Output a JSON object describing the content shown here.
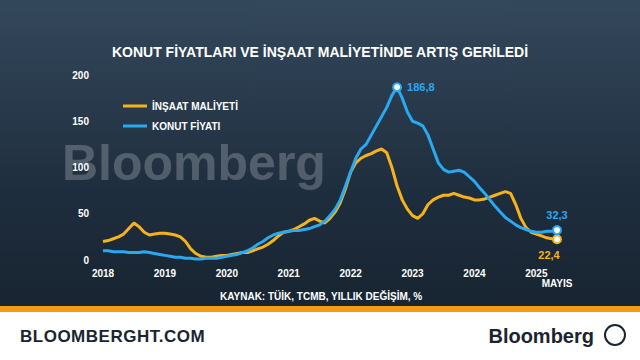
{
  "chart_data": {
    "type": "line",
    "title": "KONUT FİYATLARI VE İNŞAAT MALİYETİNDE ARTIŞ GERİLEDİ",
    "subtitle": "KAYNAK: TÜİK, TCMB, YILLIK DEĞİŞİM, %",
    "categories": [
      "2018",
      null,
      null,
      null,
      null,
      null,
      null,
      null,
      null,
      null,
      null,
      null,
      "2019",
      null,
      null,
      null,
      null,
      null,
      null,
      null,
      null,
      null,
      null,
      null,
      "2020",
      null,
      null,
      null,
      null,
      null,
      null,
      null,
      null,
      null,
      null,
      null,
      "2021",
      null,
      null,
      null,
      null,
      null,
      null,
      null,
      null,
      null,
      null,
      null,
      "2022",
      null,
      null,
      null,
      null,
      null,
      null,
      null,
      null,
      null,
      null,
      null,
      "2023",
      null,
      null,
      null,
      null,
      null,
      null,
      null,
      null,
      null,
      null,
      null,
      "2024",
      null,
      null,
      null,
      null,
      null,
      null,
      null,
      null,
      null,
      null,
      null,
      "2025",
      null,
      null,
      null,
      "MAYIS"
    ],
    "series": [
      {
        "name": "İNŞAAT MALİYETİ",
        "color": "#f5b21b",
        "values": [
          20,
          21,
          23,
          25,
          28,
          34,
          40,
          36,
          30,
          27,
          28,
          29,
          29,
          28,
          27,
          25,
          20,
          12,
          7,
          4,
          3,
          3,
          4,
          5,
          5,
          6,
          7,
          8,
          8,
          10,
          12,
          14,
          17,
          21,
          26,
          30,
          31,
          33,
          36,
          39,
          43,
          45,
          42,
          40,
          45,
          52,
          62,
          77,
          95,
          105,
          110,
          113,
          115,
          118,
          120,
          116,
          100,
          80,
          65,
          55,
          48,
          45,
          50,
          60,
          65,
          68,
          70,
          70,
          72,
          70,
          68,
          67,
          65,
          65,
          66,
          68,
          70,
          72,
          74,
          72,
          60,
          45,
          35,
          30,
          28,
          26,
          24,
          23,
          22.4
        ],
        "value_labels": [
          null,
          null,
          null,
          null,
          null,
          null,
          null,
          null,
          null,
          null,
          null,
          null,
          null,
          null,
          null,
          null,
          null,
          null,
          null,
          null,
          null,
          null,
          null,
          null,
          null,
          null,
          null,
          null,
          null,
          null,
          null,
          null,
          null,
          null,
          null,
          null,
          null,
          null,
          null,
          null,
          null,
          null,
          null,
          null,
          null,
          null,
          null,
          null,
          null,
          null,
          null,
          null,
          null,
          null,
          null,
          null,
          null,
          null,
          null,
          null,
          null,
          null,
          null,
          null,
          null,
          null,
          null,
          null,
          null,
          null,
          null,
          null,
          null,
          null,
          null,
          null,
          null,
          null,
          null,
          null,
          null,
          null,
          null,
          null,
          null,
          null,
          null,
          null,
          "22,4"
        ]
      },
      {
        "name": "KONUT FİYATI",
        "color": "#29a9f0",
        "values": [
          10,
          10,
          9,
          9,
          9,
          8,
          8,
          8,
          9,
          8,
          7,
          6,
          5,
          4,
          3,
          3,
          2,
          2,
          1,
          1,
          2,
          2,
          2,
          3,
          4,
          5,
          6,
          8,
          10,
          13,
          17,
          20,
          24,
          27,
          29,
          30,
          31,
          32,
          32,
          33,
          34,
          36,
          38,
          42,
          48,
          55,
          65,
          80,
          95,
          110,
          120,
          125,
          135,
          145,
          155,
          165,
          178,
          186.8,
          175,
          160,
          150,
          148,
          145,
          135,
          120,
          105,
          98,
          95,
          96,
          97,
          95,
          90,
          85,
          78,
          72,
          65,
          58,
          52,
          46,
          42,
          38,
          35,
          33,
          31,
          30,
          30,
          31,
          31,
          32.3
        ],
        "value_labels": [
          null,
          null,
          null,
          null,
          null,
          null,
          null,
          null,
          null,
          null,
          null,
          null,
          null,
          null,
          null,
          null,
          null,
          null,
          null,
          null,
          null,
          null,
          null,
          null,
          null,
          null,
          null,
          null,
          null,
          null,
          null,
          null,
          null,
          null,
          null,
          null,
          null,
          null,
          null,
          null,
          null,
          null,
          null,
          null,
          null,
          null,
          null,
          null,
          null,
          null,
          null,
          null,
          null,
          null,
          null,
          null,
          null,
          "186,8",
          null,
          null,
          null,
          null,
          null,
          null,
          null,
          null,
          null,
          null,
          null,
          null,
          null,
          null,
          null,
          null,
          null,
          null,
          null,
          null,
          null,
          null,
          null,
          null,
          null,
          null,
          null,
          null,
          null,
          null,
          "32,3"
        ]
      }
    ],
    "ylim": [
      0,
      200
    ],
    "yticks": [
      0,
      50,
      100,
      150,
      200
    ],
    "grid": false,
    "legend": "top-left",
    "line_style": "solid"
  },
  "watermark": "Bloomberg",
  "footer": {
    "left": "BLOOMBERGHT.COM",
    "right": "Bloomberg"
  }
}
